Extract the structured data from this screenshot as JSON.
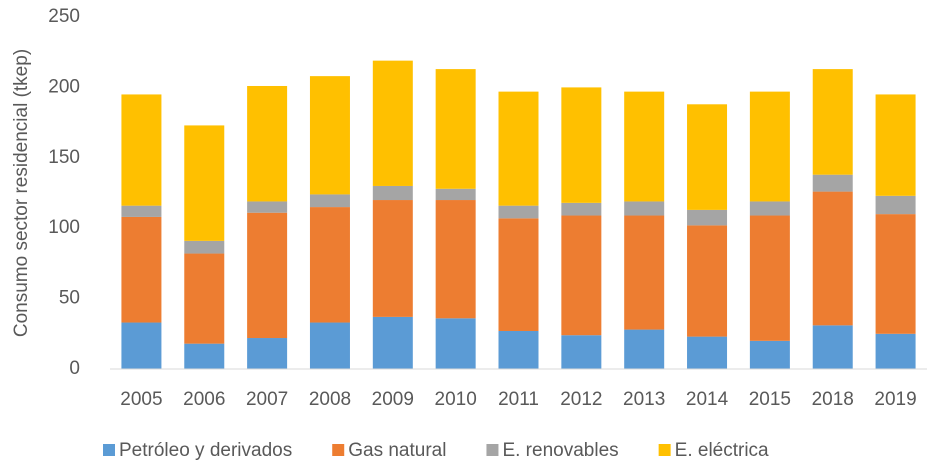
{
  "chart_data": {
    "type": "stacked_bar",
    "ylabel": "Consumo sector residencial (tkep)",
    "categories": [
      "2005",
      "2006",
      "2007",
      "2008",
      "2009",
      "2010",
      "2011",
      "2012",
      "2013",
      "2014",
      "2015",
      "2018",
      "2019"
    ],
    "series": [
      {
        "name": "Petróleo y derivados",
        "color": "#5b9bd5",
        "values": [
          33,
          18,
          22,
          33,
          37,
          36,
          27,
          24,
          28,
          23,
          20,
          31,
          25
        ]
      },
      {
        "name": "Gas natural",
        "color": "#ed7d31",
        "values": [
          75,
          64,
          89,
          82,
          83,
          84,
          80,
          85,
          81,
          79,
          89,
          95,
          85
        ]
      },
      {
        "name": "E. renovables",
        "color": "#a5a5a5",
        "values": [
          8,
          9,
          8,
          9,
          10,
          8,
          9,
          9,
          10,
          11,
          10,
          12,
          13
        ]
      },
      {
        "name": "E. eléctrica",
        "color": "#ffc000",
        "values": [
          79,
          82,
          82,
          84,
          89,
          85,
          81,
          82,
          78,
          75,
          78,
          75,
          72
        ]
      }
    ],
    "ylim": [
      0,
      250
    ],
    "yticks": [
      0,
      50,
      100,
      150,
      200,
      250
    ],
    "legend": "bottom"
  }
}
